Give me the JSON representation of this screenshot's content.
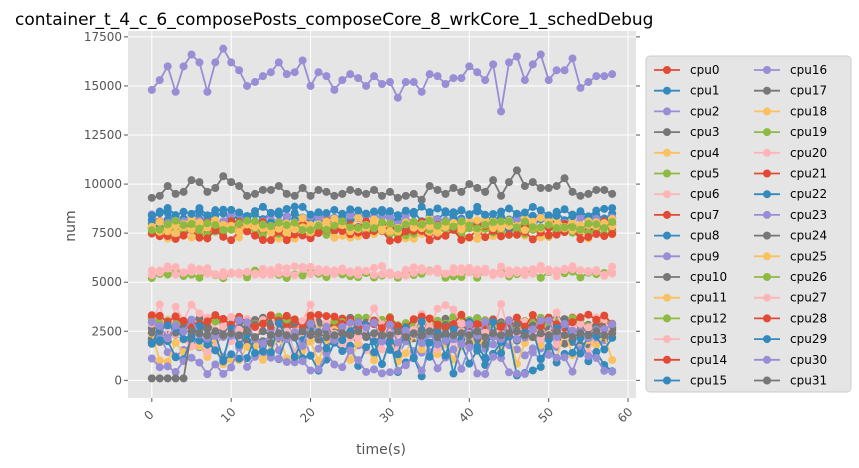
{
  "chart_data": {
    "type": "line",
    "title": "container_t_4_c_6_composePosts_composeCore_8_wrkCore_1_schedDebug",
    "xlabel": "time(s)",
    "ylabel": "num",
    "xlim": [
      -3,
      61
    ],
    "ylim": [
      -900,
      17800
    ],
    "xticks": [
      0,
      10,
      20,
      30,
      40,
      50,
      60
    ],
    "yticks": [
      0,
      2500,
      5000,
      7500,
      10000,
      12500,
      15000,
      17500
    ],
    "xtick_labels": [
      "0",
      "10",
      "20",
      "30",
      "40",
      "50",
      "60"
    ],
    "ytick_labels": [
      "0",
      "2500",
      "5000",
      "7500",
      "10000",
      "12500",
      "15000",
      "17500"
    ],
    "grid": true,
    "legend": {
      "placement": "right",
      "columns": 2
    },
    "x": [
      0,
      1,
      2,
      3,
      4,
      5,
      6,
      7,
      8,
      9,
      10,
      11,
      12,
      13,
      14,
      15,
      16,
      17,
      18,
      19,
      20,
      21,
      22,
      23,
      24,
      25,
      26,
      27,
      28,
      29,
      30,
      31,
      32,
      33,
      34,
      35,
      36,
      37,
      38,
      39,
      40,
      41,
      42,
      43,
      44,
      45,
      46,
      47,
      48,
      49,
      50,
      51,
      52,
      53,
      54,
      55,
      56,
      57,
      58
    ],
    "series": [
      {
        "name": "cpu0",
        "color": "#E24A33",
        "base": 7700,
        "amp": 250
      },
      {
        "name": "cpu1",
        "color": "#348ABD",
        "base": 8400,
        "amp": 300
      },
      {
        "name": "cpu2",
        "color": "#988ED5",
        "base": 1900,
        "amp": 700
      },
      {
        "name": "cpu3",
        "color": "#777777",
        "base": 2900,
        "amp": 300
      },
      {
        "name": "cpu4",
        "color": "#FBC15E",
        "base": 7500,
        "amp": 300
      },
      {
        "name": "cpu5",
        "color": "#8EBA42",
        "base": 5400,
        "amp": 200
      },
      {
        "name": "cpu6",
        "color": "#FFB5B8",
        "base": 5600,
        "amp": 250
      },
      {
        "name": "cpu7",
        "color": "#E24A33",
        "base": 2900,
        "amp": 300
      },
      {
        "name": "cpu8",
        "color": "#348ABD",
        "base": 8000,
        "amp": 350
      },
      {
        "name": "cpu9",
        "color": "#988ED5",
        "base": 8200,
        "amp": 300
      },
      {
        "name": "cpu10",
        "color": "#777777",
        "base": 2200,
        "amp": 400
      },
      {
        "name": "cpu11",
        "color": "#FBC15E",
        "base": 1700,
        "amp": 900
      },
      {
        "name": "cpu12",
        "color": "#8EBA42",
        "base": 7600,
        "amp": 250
      },
      {
        "name": "cpu13",
        "color": "#FFB5B8",
        "base": 2300,
        "amp": 900
      },
      {
        "name": "cpu14",
        "color": "#E24A33",
        "base": 7900,
        "amp": 250
      },
      {
        "name": "cpu15",
        "color": "#348ABD",
        "base": 1300,
        "amp": 1100
      },
      {
        "name": "cpu16",
        "color": "#988ED5",
        "base": 15500,
        "amp": 500
      },
      {
        "name": "cpu17",
        "color": "#777777",
        "base": 9700,
        "amp": 300
      },
      {
        "name": "cpu18",
        "color": "#FBC15E",
        "base": 8000,
        "amp": 300
      },
      {
        "name": "cpu19",
        "color": "#8EBA42",
        "base": 3000,
        "amp": 250
      },
      {
        "name": "cpu20",
        "color": "#FFB5B8",
        "base": 5500,
        "amp": 200
      },
      {
        "name": "cpu21",
        "color": "#E24A33",
        "base": 7400,
        "amp": 300
      },
      {
        "name": "cpu22",
        "color": "#348ABD",
        "base": 8600,
        "amp": 250
      },
      {
        "name": "cpu23",
        "color": "#988ED5",
        "base": 1000,
        "amp": 700
      },
      {
        "name": "cpu24",
        "color": "#777777",
        "base": 2700,
        "amp": 300
      },
      {
        "name": "cpu25",
        "color": "#FBC15E",
        "base": 7800,
        "amp": 300
      },
      {
        "name": "cpu26",
        "color": "#8EBA42",
        "base": 7900,
        "amp": 250
      },
      {
        "name": "cpu27",
        "color": "#FFB5B8",
        "base": 3000,
        "amp": 900
      },
      {
        "name": "cpu28",
        "color": "#E24A33",
        "base": 3000,
        "amp": 350
      },
      {
        "name": "cpu29",
        "color": "#348ABD",
        "base": 2000,
        "amp": 1000
      },
      {
        "name": "cpu30",
        "color": "#988ED5",
        "base": 2400,
        "amp": 700
      },
      {
        "name": "cpu31",
        "color": "#777777",
        "base": 2400,
        "amp": 300
      }
    ],
    "cpu16_values": [
      14800,
      15300,
      16000,
      14700,
      16000,
      16600,
      16200,
      14700,
      16200,
      16900,
      16200,
      15800,
      15000,
      15200,
      15500,
      15700,
      16200,
      15600,
      15700,
      16300,
      15000,
      15700,
      15500,
      14800,
      15300,
      15600,
      15400,
      15000,
      15500,
      15100,
      15200,
      14400,
      15200,
      15200,
      14700,
      15600,
      15500,
      15100,
      15400,
      15400,
      16000,
      15700,
      15300,
      16100,
      13700,
      16200,
      16500,
      15300,
      16100,
      16600,
      15300,
      15800,
      15800,
      16400,
      14900,
      15200,
      15500,
      15500,
      15600
    ],
    "cpu31_values": [
      100,
      100,
      100,
      100,
      100,
      2500,
      2400,
      2300,
      2500,
      2300,
      2400,
      2300,
      2500,
      2200,
      2500,
      2300,
      2400,
      2300,
      2200,
      2500,
      2300,
      2400,
      2200,
      2300,
      2400,
      2300,
      2500,
      2200,
      2400,
      2300,
      2300,
      2500,
      2200,
      2400,
      2300,
      2500,
      2200,
      2400,
      2300,
      2400,
      2300,
      2500,
      2200,
      2400,
      2300,
      2400,
      2500,
      2300,
      2200,
      2400,
      2300,
      2500,
      2300,
      2200,
      2400,
      2300,
      2500,
      2300,
      2400
    ],
    "cpu17_values": [
      9300,
      9400,
      9900,
      9500,
      9600,
      10200,
      10100,
      9600,
      9800,
      10400,
      10100,
      9900,
      9400,
      9500,
      9700,
      9700,
      9900,
      9500,
      9400,
      9800,
      9400,
      9700,
      9600,
      9400,
      9500,
      9700,
      9600,
      9500,
      9700,
      9400,
      9600,
      9300,
      9400,
      9500,
      9200,
      9900,
      9700,
      9500,
      9800,
      9600,
      10000,
      9800,
      9600,
      10200,
      9400,
      10100,
      10700,
      9900,
      10100,
      9800,
      9800,
      9900,
      10300,
      9600,
      9400,
      9500,
      9700,
      9700,
      9500
    ]
  }
}
